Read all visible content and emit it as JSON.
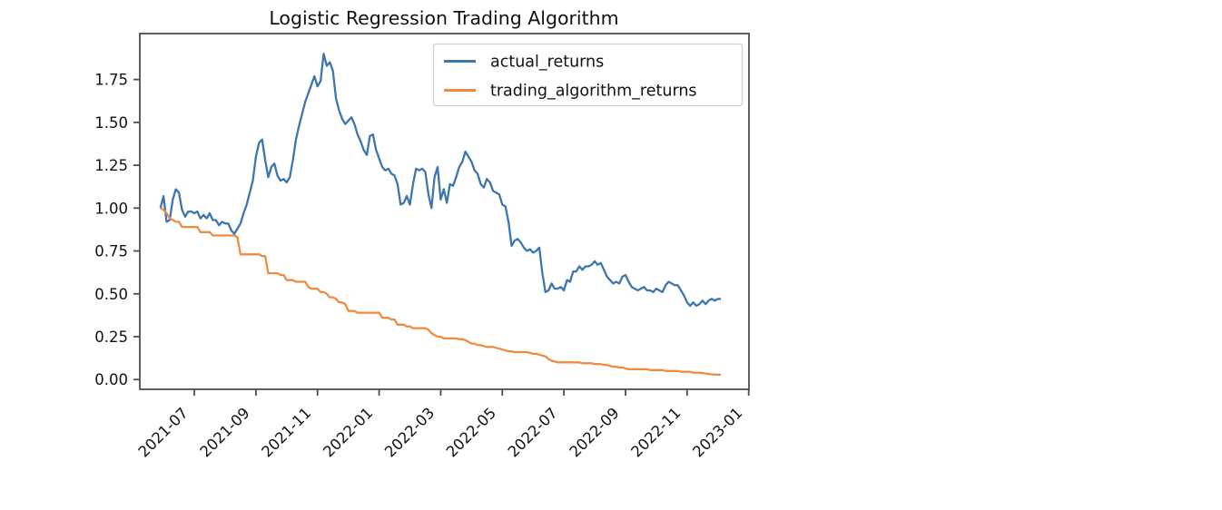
{
  "chart_data": {
    "type": "line",
    "title": "Logistic Regression Trading Algorithm",
    "xlabel": "",
    "ylabel": "",
    "grid": false,
    "x_unit": "months since 2021-07-01",
    "xlim": [
      -1.77,
      18.01
    ],
    "ylim": [
      -0.057,
      2.018
    ],
    "x_ticks": [
      {
        "pos": 0,
        "label": "2021-07"
      },
      {
        "pos": 2,
        "label": "2021-09"
      },
      {
        "pos": 4,
        "label": "2021-11"
      },
      {
        "pos": 6,
        "label": "2022-01"
      },
      {
        "pos": 8,
        "label": "2022-03"
      },
      {
        "pos": 10,
        "label": "2022-05"
      },
      {
        "pos": 12,
        "label": "2022-07"
      },
      {
        "pos": 14,
        "label": "2022-09"
      },
      {
        "pos": 16,
        "label": "2022-11"
      },
      {
        "pos": 18,
        "label": "2023-01"
      }
    ],
    "y_ticks": [
      {
        "pos": 0.0,
        "label": "0.00"
      },
      {
        "pos": 0.25,
        "label": "0.25"
      },
      {
        "pos": 0.5,
        "label": "0.50"
      },
      {
        "pos": 0.75,
        "label": "0.75"
      },
      {
        "pos": 1.0,
        "label": "1.00"
      },
      {
        "pos": 1.25,
        "label": "1.25"
      },
      {
        "pos": 1.5,
        "label": "1.50"
      },
      {
        "pos": 1.75,
        "label": "1.75"
      }
    ],
    "legend": {
      "position": "upper right",
      "entries": [
        {
          "label": "actual_returns",
          "color": "#3c76af"
        },
        {
          "label": "trading_algorithm_returns",
          "color": "#ef8b3f"
        }
      ]
    },
    "series": [
      {
        "name": "actual_returns",
        "color": "#3c76af",
        "x_start": -1.1,
        "x_step": 0.1,
        "values": [
          1.0,
          1.07,
          0.92,
          0.93,
          1.05,
          1.11,
          1.09,
          0.99,
          0.95,
          0.98,
          0.98,
          0.97,
          0.98,
          0.94,
          0.96,
          0.94,
          0.97,
          0.93,
          0.93,
          0.9,
          0.92,
          0.91,
          0.91,
          0.87,
          0.85,
          0.88,
          0.91,
          0.97,
          1.02,
          1.09,
          1.16,
          1.3,
          1.38,
          1.4,
          1.28,
          1.18,
          1.24,
          1.26,
          1.19,
          1.16,
          1.17,
          1.15,
          1.18,
          1.28,
          1.4,
          1.48,
          1.55,
          1.62,
          1.67,
          1.72,
          1.77,
          1.71,
          1.74,
          1.9,
          1.83,
          1.85,
          1.8,
          1.64,
          1.57,
          1.52,
          1.49,
          1.51,
          1.53,
          1.49,
          1.43,
          1.39,
          1.34,
          1.31,
          1.42,
          1.43,
          1.34,
          1.29,
          1.24,
          1.22,
          1.23,
          1.2,
          1.19,
          1.14,
          1.02,
          1.03,
          1.07,
          1.02,
          1.14,
          1.23,
          1.22,
          1.23,
          1.21,
          1.08,
          1.0,
          1.18,
          1.24,
          1.05,
          1.11,
          1.03,
          1.14,
          1.13,
          1.18,
          1.24,
          1.27,
          1.33,
          1.3,
          1.27,
          1.22,
          1.2,
          1.14,
          1.12,
          1.17,
          1.15,
          1.1,
          1.09,
          1.08,
          1.02,
          1.01,
          0.92,
          0.78,
          0.81,
          0.82,
          0.8,
          0.77,
          0.75,
          0.76,
          0.74,
          0.75,
          0.77,
          0.62,
          0.51,
          0.52,
          0.56,
          0.53,
          0.53,
          0.54,
          0.52,
          0.58,
          0.57,
          0.63,
          0.63,
          0.66,
          0.64,
          0.66,
          0.66,
          0.67,
          0.69,
          0.67,
          0.68,
          0.64,
          0.6,
          0.58,
          0.56,
          0.57,
          0.56,
          0.6,
          0.61,
          0.57,
          0.54,
          0.53,
          0.52,
          0.53,
          0.54,
          0.52,
          0.52,
          0.51,
          0.53,
          0.52,
          0.51,
          0.55,
          0.57,
          0.56,
          0.55,
          0.55,
          0.52,
          0.49,
          0.45,
          0.43,
          0.45,
          0.43,
          0.44,
          0.46,
          0.44,
          0.46,
          0.47,
          0.46,
          0.47,
          0.47
        ]
      },
      {
        "name": "trading_algorithm_returns",
        "color": "#ef8b3f",
        "x_start": -1.1,
        "x_step": 0.1,
        "values": [
          1.0,
          0.99,
          0.97,
          0.94,
          0.93,
          0.92,
          0.92,
          0.89,
          0.89,
          0.89,
          0.89,
          0.89,
          0.89,
          0.86,
          0.86,
          0.86,
          0.86,
          0.84,
          0.84,
          0.84,
          0.84,
          0.84,
          0.84,
          0.84,
          0.84,
          0.83,
          0.73,
          0.73,
          0.73,
          0.73,
          0.73,
          0.73,
          0.73,
          0.72,
          0.72,
          0.62,
          0.62,
          0.62,
          0.62,
          0.61,
          0.61,
          0.58,
          0.58,
          0.58,
          0.57,
          0.57,
          0.57,
          0.57,
          0.54,
          0.53,
          0.53,
          0.53,
          0.51,
          0.51,
          0.5,
          0.48,
          0.48,
          0.47,
          0.45,
          0.45,
          0.44,
          0.4,
          0.4,
          0.4,
          0.39,
          0.39,
          0.39,
          0.39,
          0.39,
          0.39,
          0.39,
          0.39,
          0.36,
          0.36,
          0.36,
          0.35,
          0.35,
          0.32,
          0.32,
          0.32,
          0.31,
          0.31,
          0.3,
          0.3,
          0.3,
          0.3,
          0.3,
          0.29,
          0.27,
          0.26,
          0.25,
          0.25,
          0.24,
          0.24,
          0.24,
          0.24,
          0.24,
          0.235,
          0.235,
          0.23,
          0.22,
          0.21,
          0.21,
          0.2,
          0.2,
          0.195,
          0.19,
          0.19,
          0.19,
          0.185,
          0.18,
          0.175,
          0.17,
          0.165,
          0.165,
          0.16,
          0.16,
          0.16,
          0.16,
          0.16,
          0.155,
          0.15,
          0.15,
          0.145,
          0.14,
          0.135,
          0.12,
          0.11,
          0.105,
          0.1,
          0.1,
          0.1,
          0.1,
          0.1,
          0.1,
          0.1,
          0.1,
          0.095,
          0.095,
          0.095,
          0.095,
          0.09,
          0.09,
          0.09,
          0.085,
          0.085,
          0.08,
          0.075,
          0.075,
          0.07,
          0.07,
          0.065,
          0.06,
          0.06,
          0.06,
          0.06,
          0.06,
          0.06,
          0.06,
          0.055,
          0.055,
          0.055,
          0.055,
          0.055,
          0.05,
          0.05,
          0.05,
          0.05,
          0.05,
          0.045,
          0.045,
          0.045,
          0.045,
          0.04,
          0.04,
          0.04,
          0.038,
          0.035,
          0.033,
          0.03,
          0.03,
          0.028,
          0.028
        ]
      }
    ]
  }
}
